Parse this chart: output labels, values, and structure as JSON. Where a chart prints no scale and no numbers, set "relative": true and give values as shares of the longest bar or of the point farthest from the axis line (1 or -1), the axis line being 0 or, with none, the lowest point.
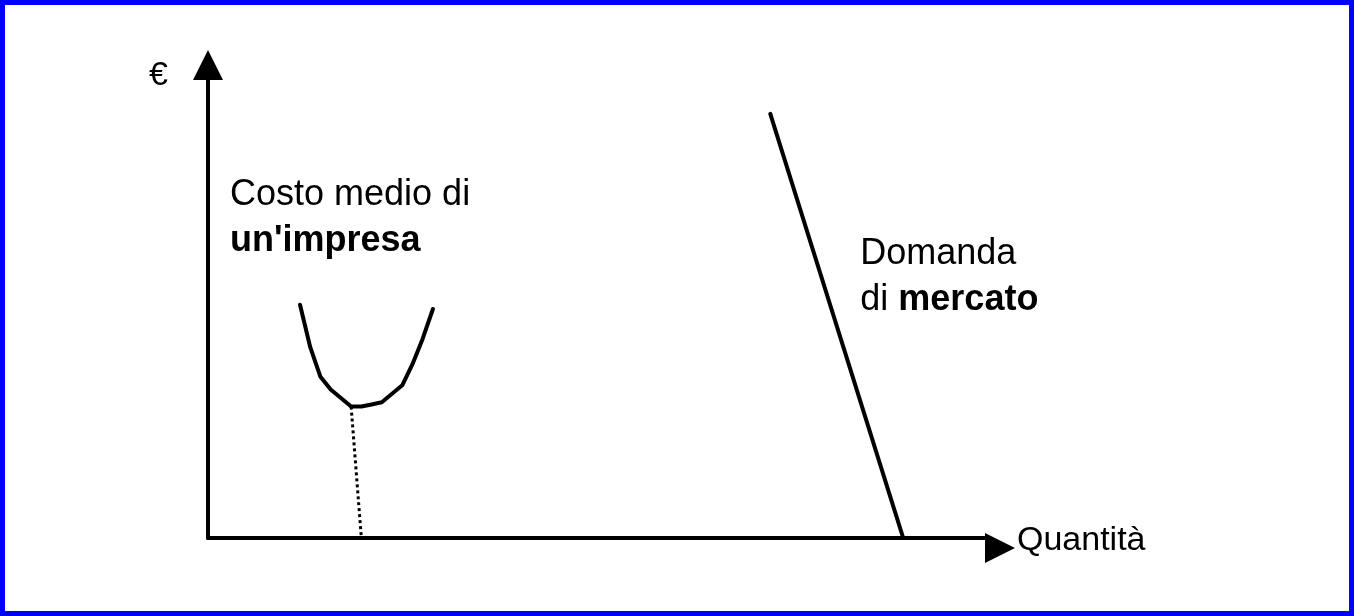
{
  "chart_data": {
    "type": "line",
    "relative": true,
    "xlabel": "Quantità",
    "ylabel": "€",
    "legend": false,
    "grid": false,
    "marker": "none",
    "categories": [
      null,
      null,
      null,
      null,
      null,
      null,
      null,
      null,
      null,
      null,
      null,
      null,
      null,
      null,
      null,
      null,
      null,
      null,
      null,
      null,
      null,
      null,
      null,
      null,
      null,
      null,
      null,
      null,
      null,
      null,
      null,
      null,
      null,
      null,
      null,
      null,
      null,
      null,
      null,
      null,
      null,
      null,
      null,
      null,
      null,
      null,
      null,
      null,
      null,
      null,
      null,
      null,
      null,
      null,
      null,
      null,
      null,
      null,
      null,
      null,
      null,
      null,
      null,
      null,
      null,
      null,
      null,
      null,
      null,
      null,
      null,
      null,
      null,
      null,
      null,
      null,
      null
    ],
    "series": [
      {
        "name": "Costo medio di\nun'impresa",
        "color": "#000000",
        "line_style": "solid",
        "values": [
          null,
          null,
          null,
          null,
          null,
          null,
          null,
          null,
          null,
          0.55,
          0.45,
          0.38,
          0.35,
          0.33,
          0.31,
          0.31,
          0.315,
          0.32,
          0.34,
          0.36,
          0.41,
          0.47,
          0.54,
          null,
          null,
          null,
          null,
          null,
          null,
          null,
          null,
          null,
          null,
          null,
          null,
          null,
          null,
          null,
          null,
          null,
          null,
          null,
          null,
          null,
          null,
          null,
          null,
          null,
          null,
          null,
          null,
          null,
          null,
          null,
          null,
          null,
          null,
          null,
          null,
          null,
          null,
          null,
          null,
          null,
          null,
          null,
          null,
          null,
          null,
          null,
          null,
          null,
          null,
          null,
          null,
          null,
          null
        ]
      },
      {
        "name": "Domanda\ndi mercato",
        "color": "#000000",
        "line_style": "solid",
        "values": [
          null,
          null,
          null,
          null,
          null,
          null,
          null,
          null,
          null,
          null,
          null,
          null,
          null,
          null,
          null,
          null,
          null,
          null,
          null,
          null,
          null,
          null,
          null,
          null,
          null,
          null,
          null,
          null,
          null,
          null,
          null,
          null,
          null,
          null,
          null,
          null,
          null,
          null,
          null,
          null,
          null,
          null,
          null,
          null,
          null,
          null,
          null,
          null,
          null,
          null,
          null,
          null,
          null,
          null,
          null,
          1.0,
          null,
          null,
          null,
          null,
          null,
          null,
          null,
          null,
          null,
          null,
          null,
          null,
          0,
          null,
          null,
          null,
          null,
          null,
          null,
          null,
          null
        ]
      },
      {
        "color": "#000000",
        "line_style": "dotted",
        "values": [
          null,
          null,
          null,
          null,
          null,
          null,
          null,
          null,
          null,
          null,
          null,
          null,
          null,
          null,
          0.31,
          0,
          null,
          null,
          null,
          null,
          null,
          null,
          null,
          null,
          null,
          null,
          null,
          null,
          null,
          null,
          null,
          null,
          null,
          null,
          null,
          null,
          null,
          null,
          null,
          null,
          null,
          null,
          null,
          null,
          null,
          null,
          null,
          null,
          null,
          null,
          null,
          null,
          null,
          null,
          null,
          null,
          null,
          null,
          null,
          null,
          null,
          null,
          null,
          null,
          null,
          null,
          null,
          null,
          null,
          null,
          null,
          null,
          null,
          null,
          null,
          null,
          null
        ]
      }
    ]
  }
}
